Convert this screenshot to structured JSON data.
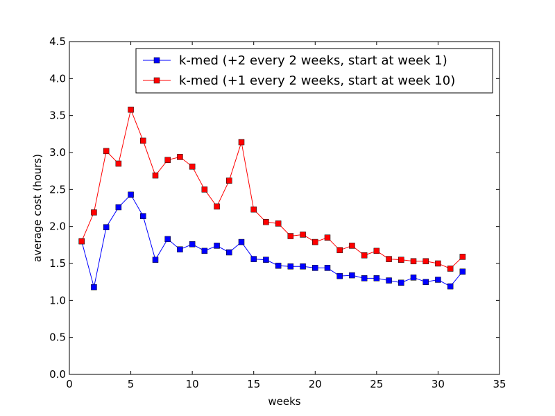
{
  "chart_data": {
    "type": "line",
    "xlabel": "weeks",
    "ylabel": "average cost (hours)",
    "xlim": [
      0,
      35
    ],
    "ylim": [
      0.0,
      4.5
    ],
    "xticks": [
      "0",
      "5",
      "10",
      "15",
      "20",
      "25",
      "30",
      "35"
    ],
    "yticks": [
      "0.0",
      "0.5",
      "1.0",
      "1.5",
      "2.0",
      "2.5",
      "3.0",
      "3.5",
      "4.0",
      "4.5"
    ],
    "grid": false,
    "legend_position": "top-right",
    "series": [
      {
        "name": "k-med (+2 every 2 weeks, start at week 1)",
        "color": "#0000ff",
        "marker": "square",
        "x": [
          1,
          2,
          3,
          4,
          5,
          6,
          7,
          8,
          9,
          10,
          11,
          12,
          13,
          14,
          15,
          16,
          17,
          18,
          19,
          20,
          21,
          22,
          23,
          24,
          25,
          26,
          27,
          28,
          29,
          30,
          31,
          32
        ],
        "values": [
          1.8,
          1.18,
          1.99,
          2.26,
          2.43,
          2.14,
          1.55,
          1.83,
          1.69,
          1.76,
          1.67,
          1.74,
          1.65,
          1.79,
          1.56,
          1.55,
          1.47,
          1.46,
          1.46,
          1.44,
          1.44,
          1.33,
          1.34,
          1.3,
          1.3,
          1.27,
          1.24,
          1.31,
          1.25,
          1.28,
          1.19,
          1.39
        ]
      },
      {
        "name": "k-med (+1 every 2 weeks, start at week 10)",
        "color": "#ff0000",
        "marker": "square",
        "x": [
          1,
          2,
          3,
          4,
          5,
          6,
          7,
          8,
          9,
          10,
          11,
          12,
          13,
          14,
          15,
          16,
          17,
          18,
          19,
          20,
          21,
          22,
          23,
          24,
          25,
          26,
          27,
          28,
          29,
          30,
          31,
          32
        ],
        "values": [
          1.8,
          2.19,
          3.02,
          2.85,
          3.58,
          3.16,
          2.69,
          2.9,
          2.94,
          2.81,
          2.5,
          2.27,
          2.62,
          3.14,
          2.23,
          2.06,
          2.04,
          1.87,
          1.89,
          1.79,
          1.85,
          1.68,
          1.74,
          1.61,
          1.67,
          1.56,
          1.55,
          1.53,
          1.53,
          1.5,
          1.43,
          1.59
        ]
      }
    ]
  }
}
